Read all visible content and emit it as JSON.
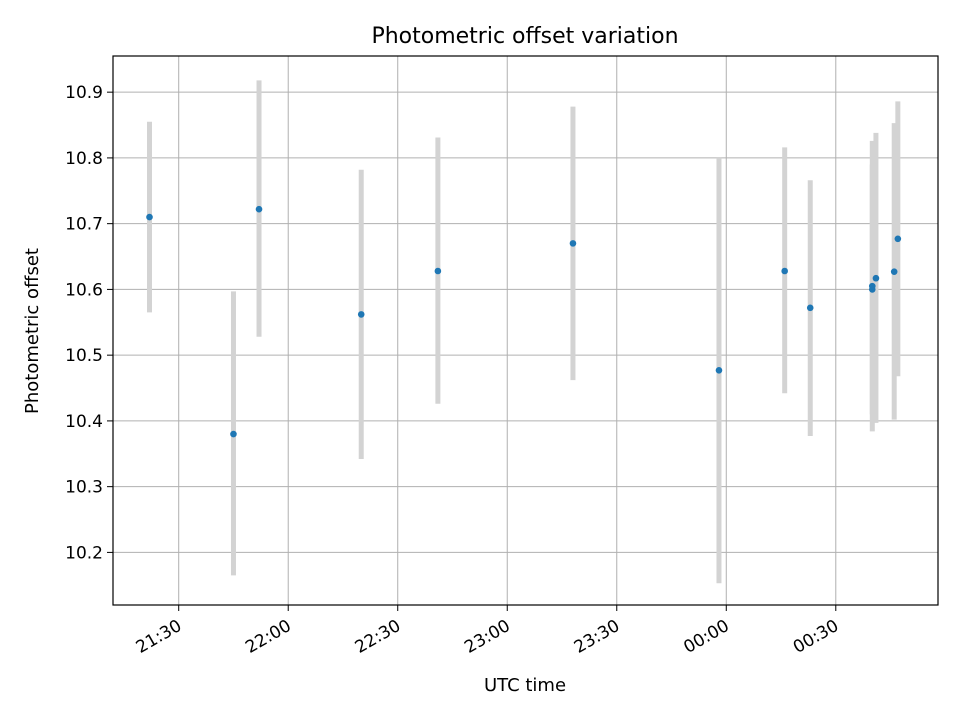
{
  "chart_data": {
    "type": "scatter",
    "title": "Photometric offset variation",
    "xlabel": "UTC time",
    "ylabel": "Photometric offset",
    "grid": true,
    "x_tick_labels": [
      "21:30",
      "22:00",
      "22:30",
      "23:00",
      "23:30",
      "00:00",
      "00:30"
    ],
    "y_tick_labels": [
      "10.2",
      "10.3",
      "10.4",
      "10.5",
      "10.6",
      "10.7",
      "10.8",
      "10.9"
    ],
    "xlim": [
      "21:12",
      "00:58"
    ],
    "ylim": [
      10.12,
      10.955
    ],
    "point_color": "#1f77b4",
    "errorbar_color": "#d3d3d3",
    "points": [
      {
        "x": "21:22",
        "y": 10.71,
        "ylow": 10.565,
        "yhigh": 10.855
      },
      {
        "x": "21:45",
        "y": 10.38,
        "ylow": 10.165,
        "yhigh": 10.597
      },
      {
        "x": "21:52",
        "y": 10.722,
        "ylow": 10.528,
        "yhigh": 10.918
      },
      {
        "x": "22:20",
        "y": 10.562,
        "ylow": 10.342,
        "yhigh": 10.782
      },
      {
        "x": "22:41",
        "y": 10.628,
        "ylow": 10.426,
        "yhigh": 10.831
      },
      {
        "x": "23:18",
        "y": 10.67,
        "ylow": 10.462,
        "yhigh": 10.878
      },
      {
        "x": "23:58",
        "y": 10.477,
        "ylow": 10.153,
        "yhigh": 10.8
      },
      {
        "x": "00:16",
        "y": 10.628,
        "ylow": 10.442,
        "yhigh": 10.816
      },
      {
        "x": "00:23",
        "y": 10.572,
        "ylow": 10.377,
        "yhigh": 10.766
      },
      {
        "x": "00:40",
        "y": 10.6,
        "ylow": 10.41,
        "yhigh": 10.79
      },
      {
        "x": "00:40",
        "y": 10.605,
        "ylow": 10.384,
        "yhigh": 10.826
      },
      {
        "x": "00:41",
        "y": 10.617,
        "ylow": 10.397,
        "yhigh": 10.838
      },
      {
        "x": "00:46",
        "y": 10.627,
        "ylow": 10.402,
        "yhigh": 10.853
      },
      {
        "x": "00:47",
        "y": 10.677,
        "ylow": 10.468,
        "yhigh": 10.886
      }
    ]
  }
}
